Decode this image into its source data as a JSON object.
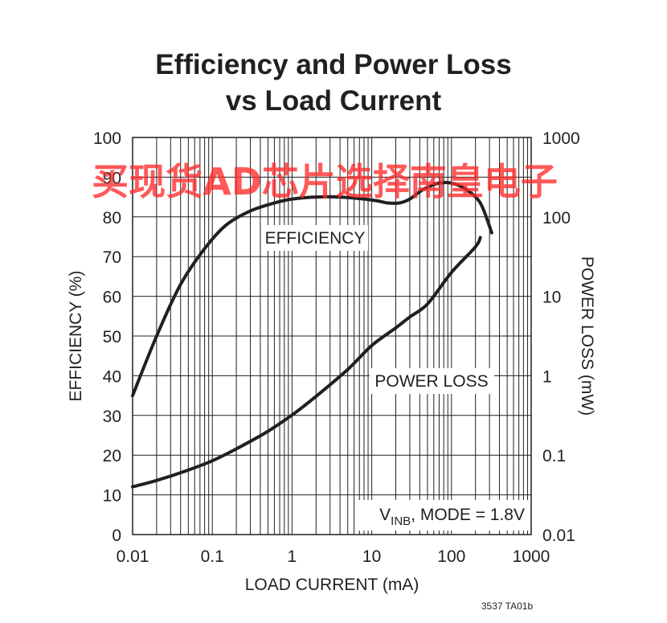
{
  "chart_data": {
    "type": "line",
    "title_line1": "Efficiency and Power Loss",
    "title_line2": "vs Load Current",
    "xlabel": "LOAD CURRENT (mA)",
    "ylabel": "EFFICIENCY (%)",
    "y2label": "POWER LOSS (mW)",
    "x_scale": "log",
    "xlim": [
      0.01,
      1000
    ],
    "ylim": [
      0,
      100
    ],
    "y2_scale": "log",
    "y2lim": [
      0.01,
      1000
    ],
    "x_ticks": [
      "0.01",
      "0.1",
      "1",
      "10",
      "100",
      "1000"
    ],
    "y_ticks": [
      "0",
      "10",
      "20",
      "30",
      "40",
      "50",
      "60",
      "70",
      "80",
      "90",
      "100"
    ],
    "y2_ticks": [
      "0.01",
      "0.1",
      "1",
      "10",
      "100",
      "1000"
    ],
    "grid": true,
    "series": [
      {
        "name": "EFFICIENCY",
        "axis": "left",
        "x": [
          0.01,
          0.02,
          0.04,
          0.08,
          0.15,
          0.3,
          0.6,
          1,
          2,
          4,
          8,
          12,
          16,
          22,
          30,
          45,
          70,
          100,
          150,
          230,
          320
        ],
        "y": [
          35,
          50,
          63,
          72,
          78,
          81.5,
          83.5,
          84.5,
          85,
          85,
          84.5,
          84,
          83.5,
          83.5,
          84.5,
          87,
          88.5,
          88.5,
          87,
          83.5,
          76
        ]
      },
      {
        "name": "POWER LOSS",
        "axis": "right",
        "x": [
          0.01,
          0.02,
          0.05,
          0.1,
          0.2,
          0.5,
          1,
          2,
          5,
          10,
          20,
          30,
          50,
          100,
          200,
          230
        ],
        "y": [
          0.04,
          0.048,
          0.065,
          0.085,
          0.12,
          0.2,
          0.32,
          0.55,
          1.2,
          2.4,
          4,
          5.5,
          8,
          20,
          42,
          55
        ]
      }
    ],
    "annotations": {
      "efficiency_label": "EFFICIENCY",
      "power_loss_label": "POWER LOSS",
      "condition_prefix": "V",
      "condition_sub": "INB",
      "condition_suffix": ", MODE = 1.8V"
    },
    "figure_id": "3537 TA01b"
  },
  "watermark": "买现货AD芯片选择南皇电子"
}
